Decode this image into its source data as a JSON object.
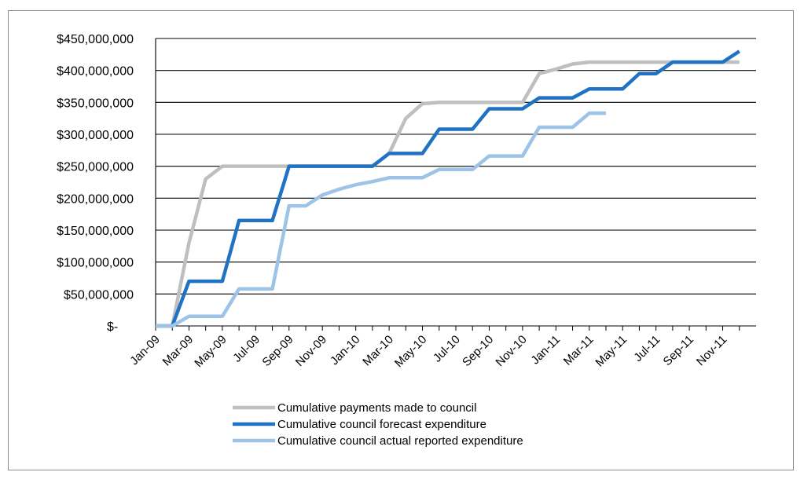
{
  "chart_data": {
    "type": "line",
    "title": "",
    "xlabel": "",
    "ylabel": "",
    "ylim": [
      0,
      450000000
    ],
    "yticks": [
      {
        "value": 0,
        "label": "$-"
      },
      {
        "value": 50000000,
        "label": "$50,000,000"
      },
      {
        "value": 100000000,
        "label": "$100,000,000"
      },
      {
        "value": 150000000,
        "label": "$150,000,000"
      },
      {
        "value": 200000000,
        "label": "$200,000,000"
      },
      {
        "value": 250000000,
        "label": "$250,000,000"
      },
      {
        "value": 300000000,
        "label": "$300,000,000"
      },
      {
        "value": 350000000,
        "label": "$350,000,000"
      },
      {
        "value": 400000000,
        "label": "$400,000,000"
      },
      {
        "value": 450000000,
        "label": "$450,000,000"
      }
    ],
    "xticks": [
      "Jan-09",
      "Mar-09",
      "May-09",
      "Jul-09",
      "Sep-09",
      "Nov-09",
      "Jan-10",
      "Mar-10",
      "May-10",
      "Jul-10",
      "Sep-10",
      "Nov-10",
      "Jan-11",
      "Mar-11",
      "May-11",
      "Jul-11",
      "Sep-11",
      "Nov-11"
    ],
    "grid": "horizontal",
    "legend_position": "bottom",
    "series": [
      {
        "name": "Cumulative payments made to council",
        "color": "#bfbfbf",
        "points": [
          [
            "Jan-09",
            0
          ],
          [
            "Feb-09",
            0
          ],
          [
            "Mar-09",
            130000000
          ],
          [
            "Apr-09",
            230000000
          ],
          [
            "May-09",
            250000000
          ],
          [
            "Jun-09",
            250000000
          ],
          [
            "Jul-09",
            250000000
          ],
          [
            "Aug-09",
            250000000
          ],
          [
            "Sep-09",
            250000000
          ],
          [
            "Oct-09",
            250000000
          ],
          [
            "Nov-09",
            250000000
          ],
          [
            "Dec-09",
            250000000
          ],
          [
            "Jan-10",
            250000000
          ],
          [
            "Feb-10",
            250000000
          ],
          [
            "Mar-10",
            270000000
          ],
          [
            "Apr-10",
            325000000
          ],
          [
            "May-10",
            348000000
          ],
          [
            "Jun-10",
            350000000
          ],
          [
            "Jul-10",
            350000000
          ],
          [
            "Aug-10",
            350000000
          ],
          [
            "Sep-10",
            350000000
          ],
          [
            "Oct-10",
            350000000
          ],
          [
            "Nov-10",
            350000000
          ],
          [
            "Dec-10",
            395000000
          ],
          [
            "Jan-11",
            402000000
          ],
          [
            "Feb-11",
            410000000
          ],
          [
            "Mar-11",
            413000000
          ],
          [
            "Apr-11",
            413000000
          ],
          [
            "May-11",
            413000000
          ],
          [
            "Jun-11",
            413000000
          ],
          [
            "Jul-11",
            413000000
          ],
          [
            "Aug-11",
            413000000
          ],
          [
            "Sep-11",
            413000000
          ],
          [
            "Oct-11",
            413000000
          ],
          [
            "Nov-11",
            413000000
          ],
          [
            "Dec-11",
            413000000
          ]
        ]
      },
      {
        "name": "Cumulative council forecast expenditure",
        "color": "#1f72c4",
        "points": [
          [
            "Jan-09",
            0
          ],
          [
            "Feb-09",
            0
          ],
          [
            "Mar-09",
            70000000
          ],
          [
            "Apr-09",
            70000000
          ],
          [
            "May-09",
            70000000
          ],
          [
            "Jun-09",
            165000000
          ],
          [
            "Jul-09",
            165000000
          ],
          [
            "Aug-09",
            165000000
          ],
          [
            "Sep-09",
            250000000
          ],
          [
            "Oct-09",
            250000000
          ],
          [
            "Nov-09",
            250000000
          ],
          [
            "Dec-09",
            250000000
          ],
          [
            "Jan-10",
            250000000
          ],
          [
            "Feb-10",
            250000000
          ],
          [
            "Mar-10",
            270000000
          ],
          [
            "Apr-10",
            270000000
          ],
          [
            "May-10",
            270000000
          ],
          [
            "Jun-10",
            308000000
          ],
          [
            "Jul-10",
            308000000
          ],
          [
            "Aug-10",
            308000000
          ],
          [
            "Sep-10",
            340000000
          ],
          [
            "Oct-10",
            340000000
          ],
          [
            "Nov-10",
            340000000
          ],
          [
            "Dec-10",
            357000000
          ],
          [
            "Jan-11",
            357000000
          ],
          [
            "Feb-11",
            357000000
          ],
          [
            "Mar-11",
            371000000
          ],
          [
            "Apr-11",
            371000000
          ],
          [
            "May-11",
            371000000
          ],
          [
            "Jun-11",
            395000000
          ],
          [
            "Jul-11",
            395000000
          ],
          [
            "Aug-11",
            413000000
          ],
          [
            "Sep-11",
            413000000
          ],
          [
            "Oct-11",
            413000000
          ],
          [
            "Nov-11",
            413000000
          ],
          [
            "Dec-11",
            430000000
          ]
        ]
      },
      {
        "name": "Cumulative council actual reported expenditure",
        "color": "#9dc3e6",
        "points": [
          [
            "Jan-09",
            0
          ],
          [
            "Feb-09",
            0
          ],
          [
            "Mar-09",
            15000000
          ],
          [
            "Apr-09",
            15000000
          ],
          [
            "May-09",
            15000000
          ],
          [
            "Jun-09",
            58000000
          ],
          [
            "Jul-09",
            58000000
          ],
          [
            "Aug-09",
            58000000
          ],
          [
            "Sep-09",
            188000000
          ],
          [
            "Oct-09",
            188000000
          ],
          [
            "Nov-09",
            205000000
          ],
          [
            "Dec-09",
            214000000
          ],
          [
            "Jan-10",
            221000000
          ],
          [
            "Feb-10",
            226000000
          ],
          [
            "Mar-10",
            232000000
          ],
          [
            "Apr-10",
            232000000
          ],
          [
            "May-10",
            232000000
          ],
          [
            "Jun-10",
            245000000
          ],
          [
            "Jul-10",
            245000000
          ],
          [
            "Aug-10",
            245000000
          ],
          [
            "Sep-10",
            266000000
          ],
          [
            "Oct-10",
            266000000
          ],
          [
            "Nov-10",
            266000000
          ],
          [
            "Dec-10",
            311000000
          ],
          [
            "Jan-11",
            311000000
          ],
          [
            "Feb-11",
            311000000
          ],
          [
            "Mar-11",
            333000000
          ],
          [
            "Apr-11",
            333000000
          ]
        ]
      }
    ]
  }
}
